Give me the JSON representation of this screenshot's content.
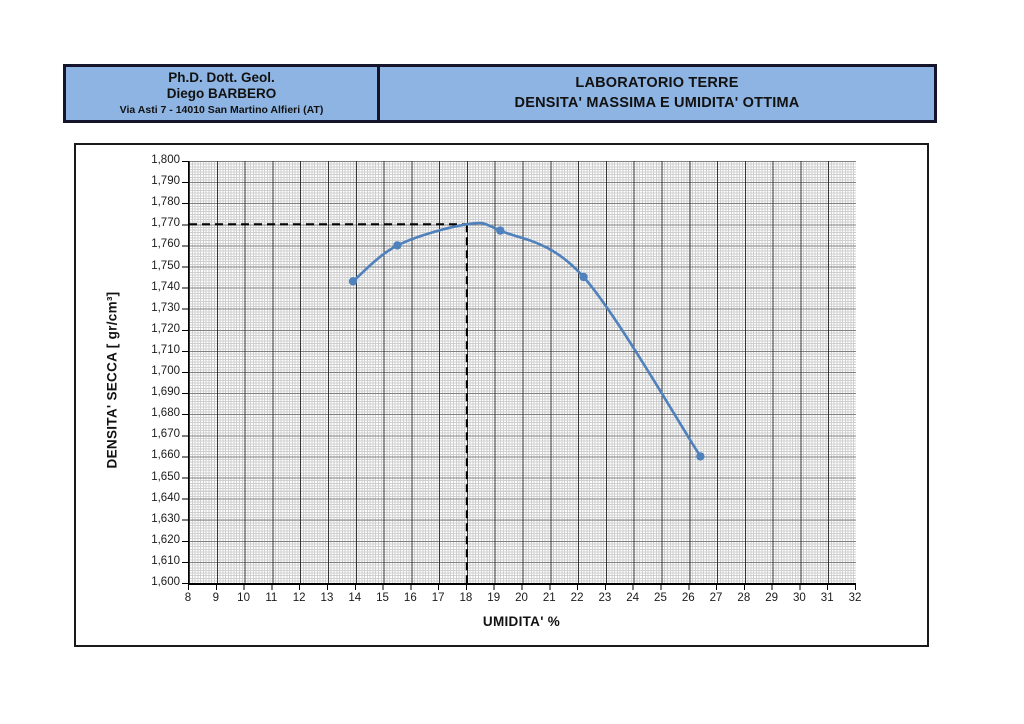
{
  "header": {
    "fill_color": "#8db4e2",
    "border_color": "#14142b",
    "left": {
      "line1": "Ph.D. Dott. Geol.",
      "line2": "Diego BARBERO",
      "line3": "Via Asti 7 - 14010 San Martino Alfieri (AT)"
    },
    "right": {
      "line1": "LABORATORIO TERRE",
      "line2": "DENSITA' MASSIMA E UMIDITA' OTTIMA"
    }
  },
  "chart_data": {
    "type": "scatter",
    "title": "",
    "xlabel": "UMIDITA' %",
    "ylabel": "DENSITA' SECCA  [ gr/cm³]",
    "xlim": [
      8,
      32
    ],
    "ylim": [
      1.6,
      1.8
    ],
    "x_tick_step": 1,
    "y_tick_step": 0.01,
    "x_tick_labels": [
      "8",
      "9",
      "10",
      "11",
      "12",
      "13",
      "14",
      "15",
      "16",
      "17",
      "18",
      "19",
      "20",
      "21",
      "22",
      "23",
      "24",
      "25",
      "26",
      "27",
      "28",
      "29",
      "30",
      "31",
      "32"
    ],
    "y_tick_labels": [
      "1,800",
      "1,790",
      "1,780",
      "1,770",
      "1,760",
      "1,750",
      "1,740",
      "1,730",
      "1,720",
      "1,710",
      "1,700",
      "1,690",
      "1,680",
      "1,670",
      "1,660",
      "1,650",
      "1,640",
      "1,630",
      "1,620",
      "1,610",
      "1,600"
    ],
    "grid": true,
    "points": [
      {
        "x": 13.9,
        "y": 1.743
      },
      {
        "x": 15.5,
        "y": 1.76
      },
      {
        "x": 19.2,
        "y": 1.767
      },
      {
        "x": 22.2,
        "y": 1.745
      },
      {
        "x": 26.4,
        "y": 1.66
      }
    ],
    "optimum": {
      "umidita_percent": 18,
      "densita_massima": 1.77
    },
    "annotations": {
      "dashed_vertical_at_x": 18,
      "dashed_horizontal_at_y": 1.77
    },
    "line_color": "#4f81bd"
  }
}
